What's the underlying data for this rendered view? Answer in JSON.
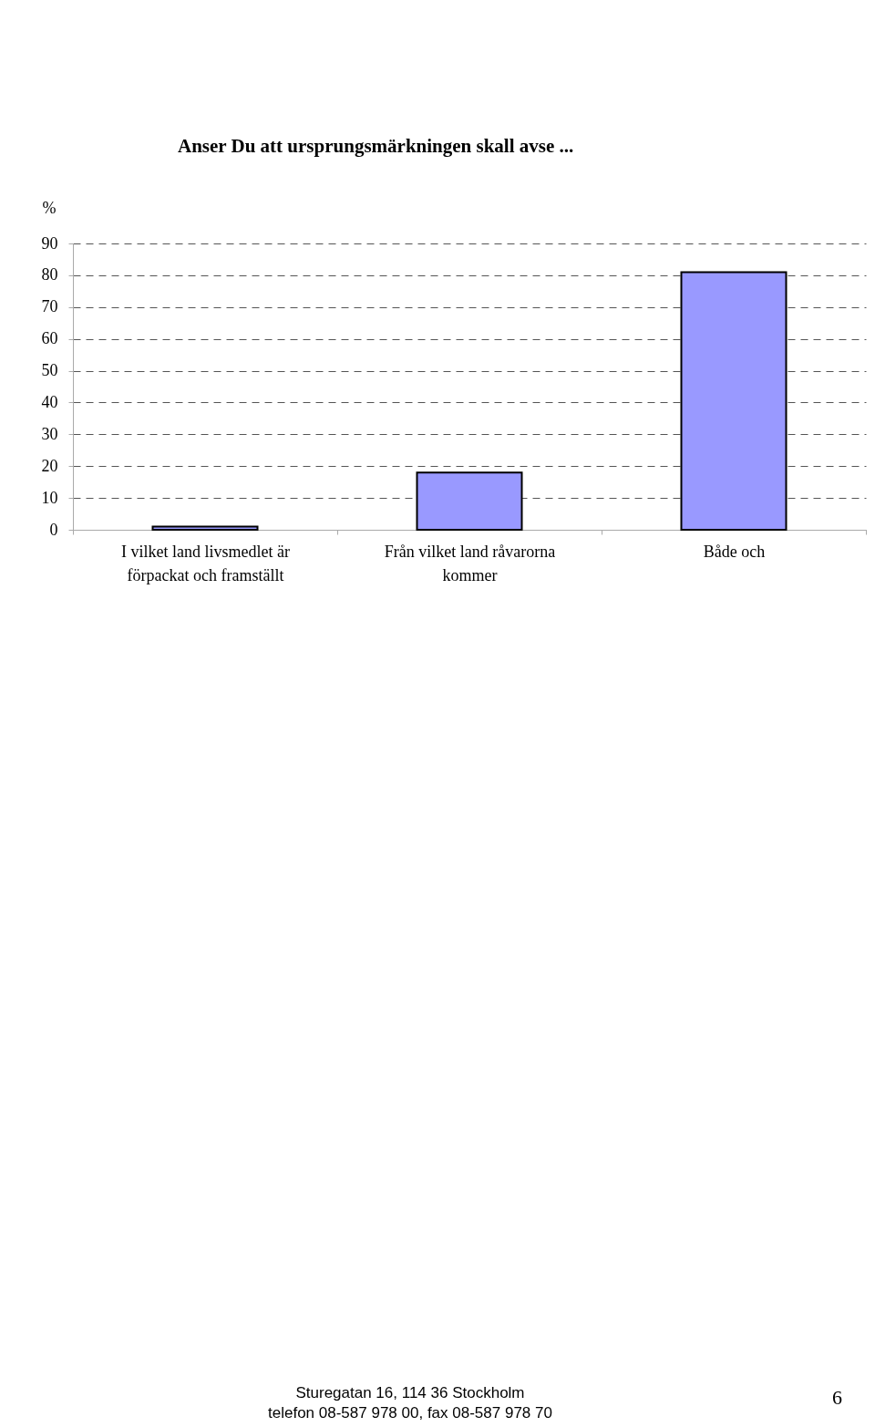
{
  "chart_data": {
    "type": "bar",
    "title": "Anser Du att ursprungsmärkningen skall avse ...",
    "ylabel": "%",
    "categories": [
      "I vilket land livsmedlet är förpackat och framställt",
      "Från vilket land råvarorna kommer",
      "Både och"
    ],
    "values": [
      1,
      18,
      81
    ],
    "color": "#9999ff",
    "ylim": [
      0,
      90
    ],
    "yticks": [
      0,
      10,
      20,
      30,
      40,
      50,
      60,
      70,
      80,
      90
    ],
    "grid": "y",
    "annotations": [
      "Sturegatan 16, 114 36 Stockholm",
      "telefon 08-587 978 00, fax 08-587 978 70",
      "6"
    ]
  }
}
